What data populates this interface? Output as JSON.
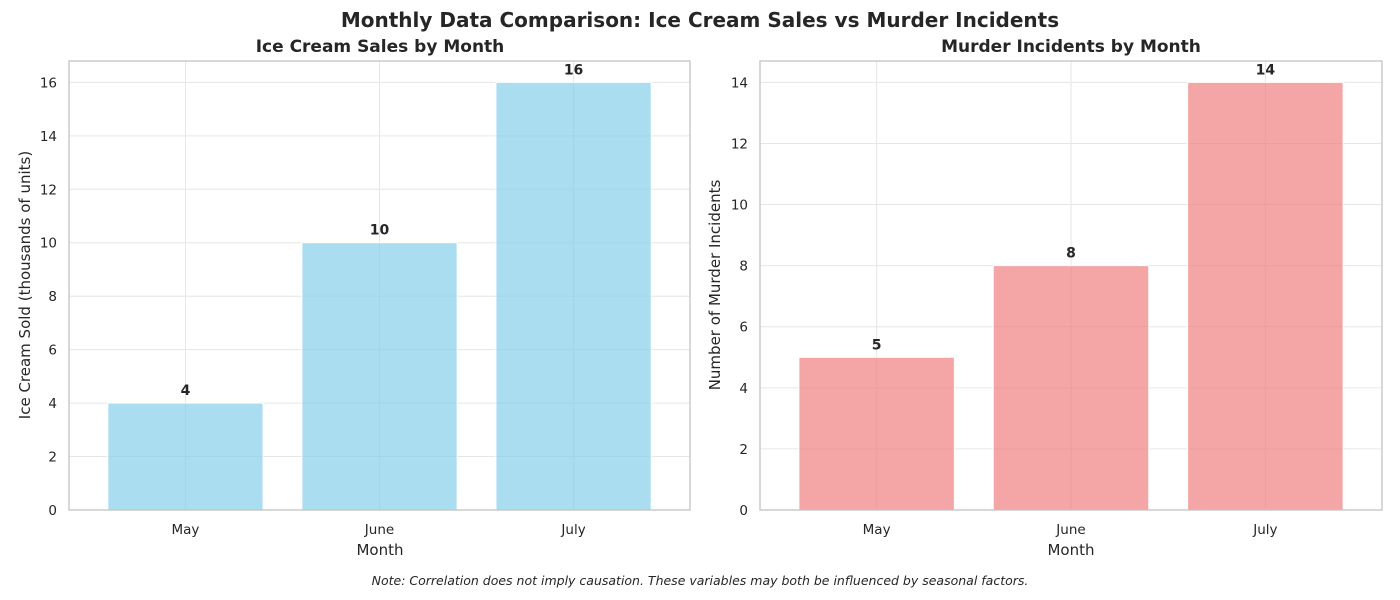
{
  "figure": {
    "suptitle": "Monthly Data Comparison: Ice Cream Sales vs Murder Incidents",
    "note": "Note: Correlation does not imply causation. These variables may both be influenced by seasonal factors."
  },
  "chart_data": [
    {
      "type": "bar",
      "title": "Ice Cream Sales by Month",
      "xlabel": "Month",
      "ylabel": "Ice Cream Sold (thousands of units)",
      "categories": [
        "May",
        "June",
        "July"
      ],
      "values": [
        4,
        10,
        16
      ],
      "data_labels": [
        "4",
        "10",
        "16"
      ],
      "ylim": [
        0,
        16.8
      ],
      "yticks": [
        0,
        2,
        4,
        6,
        8,
        10,
        12,
        14,
        16
      ],
      "color": "#87ceeb",
      "grid": true
    },
    {
      "type": "bar",
      "title": "Murder Incidents by Month",
      "xlabel": "Month",
      "ylabel": "Number of Murder Incidents",
      "categories": [
        "May",
        "June",
        "July"
      ],
      "values": [
        5,
        8,
        14
      ],
      "data_labels": [
        "5",
        "8",
        "14"
      ],
      "ylim": [
        0,
        14.7
      ],
      "yticks": [
        0,
        2,
        4,
        6,
        8,
        10,
        12,
        14
      ],
      "color": "#f08080",
      "grid": true
    }
  ]
}
